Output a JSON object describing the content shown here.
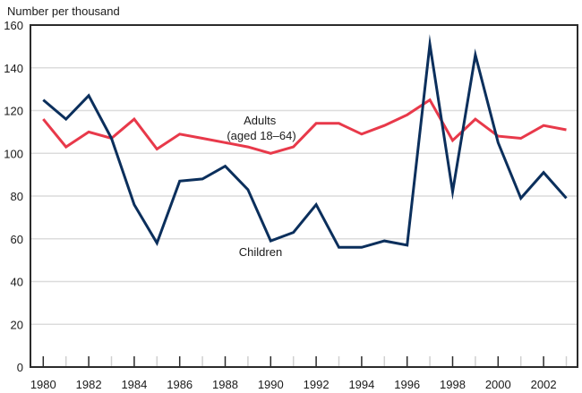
{
  "chart_data": {
    "type": "line",
    "title": "",
    "ylabel": "Number per thousand",
    "xlabel": "",
    "ylim": [
      0,
      160
    ],
    "xlim": [
      1980,
      2003
    ],
    "yticks": [
      0,
      20,
      40,
      60,
      80,
      100,
      120,
      140,
      160
    ],
    "xtick_labels": [
      "1980",
      "1982",
      "1984",
      "1986",
      "1988",
      "1990",
      "1992",
      "1994",
      "1996",
      "1998",
      "2000",
      "2002"
    ],
    "grid": "horizontal",
    "x": [
      1980,
      1981,
      1982,
      1983,
      1984,
      1985,
      1986,
      1987,
      1988,
      1989,
      1990,
      1991,
      1992,
      1993,
      1994,
      1995,
      1996,
      1997,
      1998,
      1999,
      2000,
      2001,
      2002,
      2003
    ],
    "series": [
      {
        "name": "Adults (aged 18–64)",
        "label_lines": [
          "Adults",
          "(aged 18–64)"
        ],
        "color": "#e8394a",
        "values": [
          116,
          103,
          110,
          107,
          116,
          102,
          109,
          107,
          105,
          103,
          100,
          103,
          114,
          114,
          109,
          113,
          118,
          125,
          106,
          116,
          108,
          107,
          113,
          111
        ]
      },
      {
        "name": "Children",
        "label_lines": [
          "Children"
        ],
        "color": "#0b2f5c",
        "values": [
          125,
          116,
          127,
          107,
          76,
          58,
          87,
          88,
          94,
          83,
          59,
          63,
          76,
          56,
          56,
          59,
          57,
          151,
          82,
          146,
          105,
          79,
          91,
          79
        ]
      }
    ],
    "legend": "inline-annotations"
  }
}
